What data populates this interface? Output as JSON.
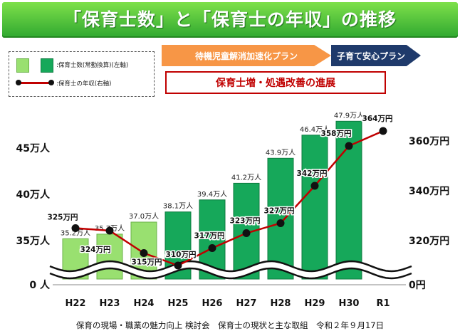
{
  "title": "「保育士数」と「保育士の年収」の推移",
  "legend": {
    "bars_label": ":保育士数(常勤換算)(左軸)",
    "line_label": ":保育士の年収(右軸)"
  },
  "plans": {
    "plan1": "待機児童解消加速化プラン",
    "plan2": "子育て安心プラン",
    "progress": "保育士増・処遇改善の進展"
  },
  "footer": "保育の現場・職業の魅力向上 検討会　保育士の現状と主な取組　令和２年９月17日",
  "colors": {
    "bar_light": "#99e070",
    "bar_green": "#16a85a",
    "line": "#c00000",
    "title_green": "#3cb83a"
  },
  "chart_data": {
    "type": "bar",
    "categories": [
      "H22",
      "H23",
      "H24",
      "H25",
      "H26",
      "H27",
      "H28",
      "H29",
      "H30",
      "R1"
    ],
    "left_axis": {
      "ticks": [
        "0 人",
        "35万人",
        "40万人",
        "45万人"
      ],
      "tick_values": [
        0,
        35,
        40,
        45
      ],
      "broken": true
    },
    "right_axis": {
      "ticks": [
        "0円",
        "320万円",
        "340万円",
        "360万円"
      ],
      "tick_values": [
        0,
        320,
        340,
        360
      ],
      "broken": true
    },
    "series": [
      {
        "type": "bar",
        "axis": "left",
        "values": [
          35.2,
          35.7,
          37.0,
          38.1,
          39.4,
          41.2,
          43.9,
          46.4,
          47.9,
          null
        ],
        "labels": [
          "35.2万人",
          "35.7万人",
          "37.0万人",
          "38.1万人",
          "39.4万人",
          "41.2万人",
          "43.9万人",
          "46.4万人",
          "47.9万人",
          ""
        ],
        "bar_styles": [
          "light",
          "light",
          "light",
          "green",
          "green",
          "green",
          "green",
          "green",
          "green",
          "none"
        ]
      },
      {
        "type": "line",
        "axis": "right",
        "values": [
          325,
          324,
          315,
          310,
          317,
          323,
          327,
          342,
          358,
          364
        ],
        "labels": [
          "325万円",
          "324万円",
          "315万円",
          "310万円",
          "317万円",
          "323万円",
          "327万円",
          "342万円",
          "358万円",
          "364万円"
        ]
      }
    ]
  }
}
